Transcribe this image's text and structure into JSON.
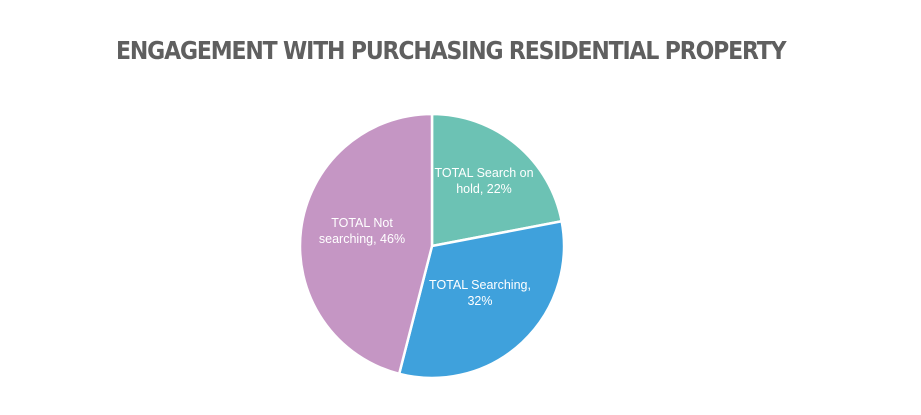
{
  "chart_data": {
    "type": "pie",
    "title": "ENGAGEMENT WITH PURCHASING RESIDENTIAL PROPERTY",
    "slices": [
      {
        "name": "TOTAL  Search on hold",
        "value": 22,
        "color": "#6cc2b4",
        "label_lines": [
          "TOTAL  Search on",
          "hold, 22%"
        ]
      },
      {
        "name": "TOTAL Searching",
        "value": 32,
        "color": "#3fa1dc",
        "label_lines": [
          "TOTAL Searching,",
          "32%"
        ]
      },
      {
        "name": "TOTAL Not searching",
        "value": 46,
        "color": "#c596c4",
        "label_lines": [
          "TOTAL Not",
          "searching, 46%"
        ]
      }
    ],
    "start_angle_deg": 0,
    "direction": "clockwise",
    "legend": "none",
    "data_labels": "inside"
  }
}
